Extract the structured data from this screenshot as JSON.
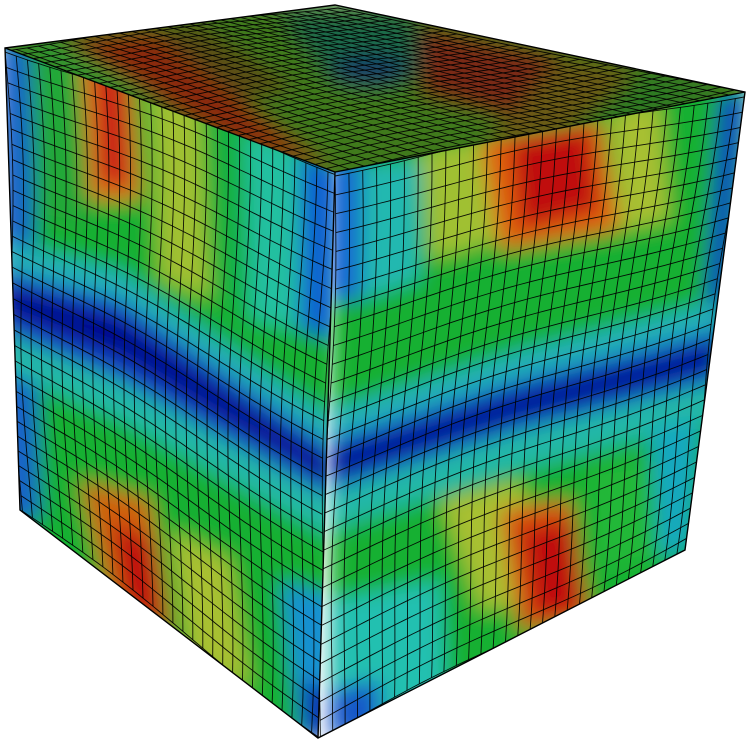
{
  "figure": {
    "subject": "hexahedral-mesh-cube",
    "colormap": [
      "#00008b",
      "#0050d0",
      "#00b8b8",
      "#18b030",
      "#a8c030",
      "#e06010",
      "#c01010"
    ],
    "background": "#ffffff",
    "mesh_line_color": "#000000"
  }
}
